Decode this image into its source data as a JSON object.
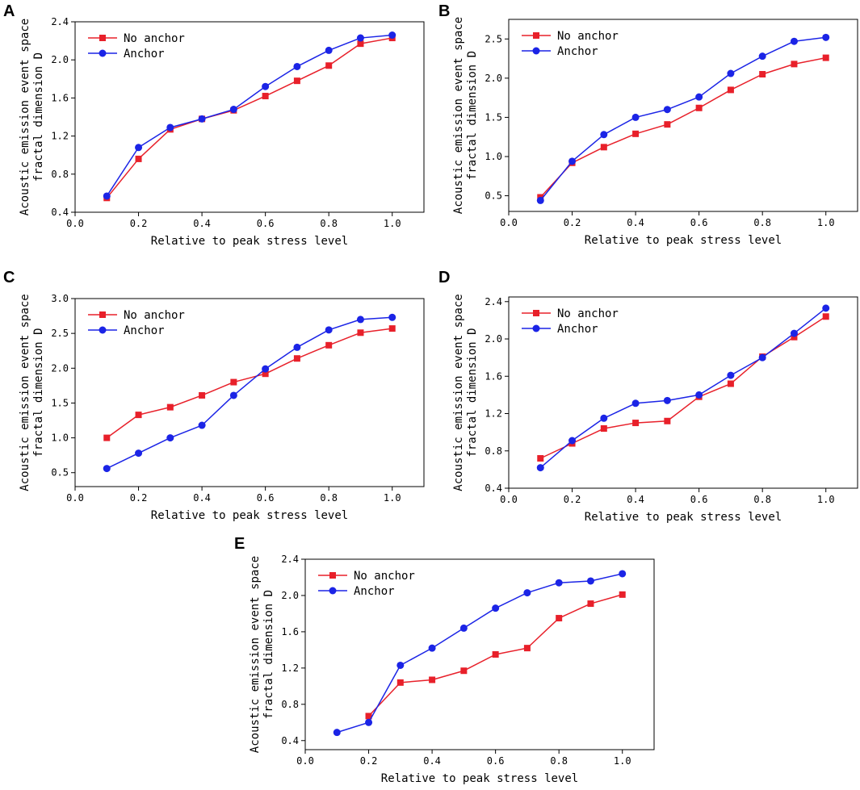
{
  "chart_data": [
    {
      "panel": "A",
      "type": "line",
      "xlabel": "Relative to peak stress level",
      "ylabel": [
        "Acoustic emission event space",
        "fractal dimension D"
      ],
      "xlim": [
        0.0,
        1.1
      ],
      "ylim": [
        0.4,
        2.4
      ],
      "xticks": [
        0.0,
        0.2,
        0.4,
        0.6,
        0.8,
        1.0
      ],
      "xtick_labels": [
        "0.0",
        "0.2",
        "0.4",
        "0.6",
        "0.8",
        "1.0"
      ],
      "yticks": [
        0.4,
        0.8,
        1.2,
        1.6,
        2.0,
        2.4
      ],
      "ytick_labels": [
        "0.4",
        "0.8",
        "1.2",
        "1.6",
        "2.0",
        "2.4"
      ],
      "legend_position": "top-left",
      "x": [
        0.1,
        0.2,
        0.3,
        0.4,
        0.5,
        0.6,
        0.7,
        0.8,
        0.9,
        1.0
      ],
      "series": [
        {
          "name": "No anchor",
          "color": "#e8202a",
          "marker": "square",
          "values": [
            0.55,
            0.96,
            1.27,
            1.38,
            1.47,
            1.62,
            1.78,
            1.94,
            2.17,
            2.23
          ]
        },
        {
          "name": "Anchor",
          "color": "#1b24e6",
          "marker": "circle",
          "values": [
            0.57,
            1.08,
            1.29,
            1.38,
            1.48,
            1.72,
            1.93,
            2.1,
            2.23,
            2.26
          ]
        }
      ]
    },
    {
      "panel": "B",
      "type": "line",
      "xlabel": "Relative to peak stress level",
      "ylabel": [
        "Acoustic emission event space",
        "fractal dimension D"
      ],
      "xlim": [
        0.0,
        1.1
      ],
      "ylim": [
        0.3,
        2.75
      ],
      "xticks": [
        0.0,
        0.2,
        0.4,
        0.6,
        0.8,
        1.0
      ],
      "xtick_labels": [
        "0.0",
        "0.2",
        "0.4",
        "0.6",
        "0.8",
        "1.0"
      ],
      "yticks": [
        0.5,
        1.0,
        1.5,
        2.0,
        2.5
      ],
      "ytick_labels": [
        "0.5",
        "1.0",
        "1.5",
        "2.0",
        "2.5"
      ],
      "legend_position": "top-left",
      "x": [
        0.1,
        0.2,
        0.3,
        0.4,
        0.5,
        0.6,
        0.7,
        0.8,
        0.9,
        1.0
      ],
      "series": [
        {
          "name": "No anchor",
          "color": "#e8202a",
          "marker": "square",
          "values": [
            0.48,
            0.92,
            1.12,
            1.29,
            1.41,
            1.62,
            1.85,
            2.05,
            2.18,
            2.26
          ]
        },
        {
          "name": "Anchor",
          "color": "#1b24e6",
          "marker": "circle",
          "values": [
            0.44,
            0.94,
            1.28,
            1.5,
            1.6,
            1.76,
            2.06,
            2.28,
            2.47,
            2.52
          ]
        }
      ]
    },
    {
      "panel": "C",
      "type": "line",
      "xlabel": "Relative to peak stress level",
      "ylabel": [
        "Acoustic emission event space",
        "fractal dimension D"
      ],
      "xlim": [
        0.0,
        1.1
      ],
      "ylim": [
        0.3,
        3.0
      ],
      "xticks": [
        0.0,
        0.2,
        0.4,
        0.6,
        0.8,
        1.0
      ],
      "xtick_labels": [
        "0.0",
        "0.2",
        "0.4",
        "0.6",
        "0.8",
        "1.0"
      ],
      "yticks": [
        0.5,
        1.0,
        1.5,
        2.0,
        2.5,
        3.0
      ],
      "ytick_labels": [
        "0.5",
        "1.0",
        "1.5",
        "2.0",
        "2.5",
        "3.0"
      ],
      "legend_position": "top-left",
      "x": [
        0.1,
        0.2,
        0.3,
        0.4,
        0.5,
        0.6,
        0.7,
        0.8,
        0.9,
        1.0
      ],
      "series": [
        {
          "name": "No anchor",
          "color": "#e8202a",
          "marker": "square",
          "values": [
            1.0,
            1.33,
            1.44,
            1.61,
            1.8,
            1.92,
            2.14,
            2.33,
            2.51,
            2.57
          ]
        },
        {
          "name": "Anchor",
          "color": "#1b24e6",
          "marker": "circle",
          "values": [
            0.56,
            0.78,
            1.0,
            1.18,
            1.61,
            1.99,
            2.3,
            2.55,
            2.7,
            2.73
          ]
        }
      ]
    },
    {
      "panel": "D",
      "type": "line",
      "xlabel": "Relative to peak stress level",
      "ylabel": [
        "Acoustic emission event space",
        "fractal dimension D"
      ],
      "xlim": [
        0.0,
        1.1
      ],
      "ylim": [
        0.4,
        2.45
      ],
      "xticks": [
        0.0,
        0.2,
        0.4,
        0.6,
        0.8,
        1.0
      ],
      "xtick_labels": [
        "0.0",
        "0.2",
        "0.4",
        "0.6",
        "0.8",
        "1.0"
      ],
      "yticks": [
        0.4,
        0.8,
        1.2,
        1.6,
        2.0,
        2.4
      ],
      "ytick_labels": [
        "0.4",
        "0.8",
        "1.2",
        "1.6",
        "2.0",
        "2.4"
      ],
      "legend_position": "top-left",
      "x": [
        0.1,
        0.2,
        0.3,
        0.4,
        0.5,
        0.6,
        0.7,
        0.8,
        0.9,
        1.0
      ],
      "series": [
        {
          "name": "No anchor",
          "color": "#e8202a",
          "marker": "square",
          "values": [
            0.72,
            0.88,
            1.04,
            1.1,
            1.12,
            1.38,
            1.52,
            1.81,
            2.02,
            2.24
          ]
        },
        {
          "name": "Anchor",
          "color": "#1b24e6",
          "marker": "circle",
          "values": [
            0.62,
            0.91,
            1.15,
            1.31,
            1.34,
            1.4,
            1.61,
            1.8,
            2.06,
            2.33
          ]
        }
      ]
    },
    {
      "panel": "E",
      "type": "line",
      "xlabel": "Relative to peak stress level",
      "ylabel": [
        "Acoustic emission event space",
        "fractal dimension D"
      ],
      "xlim": [
        0.0,
        1.1
      ],
      "ylim": [
        0.3,
        2.4
      ],
      "xticks": [
        0.0,
        0.2,
        0.4,
        0.6,
        0.8,
        1.0
      ],
      "xtick_labels": [
        "0.0",
        "0.2",
        "0.4",
        "0.6",
        "0.8",
        "1.0"
      ],
      "yticks": [
        0.4,
        0.8,
        1.2,
        1.6,
        2.0,
        2.4
      ],
      "ytick_labels": [
        "0.4",
        "0.8",
        "1.2",
        "1.6",
        "2.0",
        "2.4"
      ],
      "legend_position": "top-left",
      "x": [
        0.1,
        0.2,
        0.3,
        0.4,
        0.5,
        0.6,
        0.7,
        0.8,
        0.9,
        1.0
      ],
      "series": [
        {
          "name": "No anchor",
          "color": "#e8202a",
          "marker": "square",
          "values": [
            null,
            0.67,
            1.04,
            1.07,
            1.17,
            1.35,
            1.42,
            1.75,
            1.91,
            2.01
          ]
        },
        {
          "name": "Anchor",
          "color": "#1b24e6",
          "marker": "circle",
          "values": [
            0.49,
            0.6,
            1.23,
            1.42,
            1.64,
            1.86,
            2.03,
            2.14,
            2.16,
            2.24
          ]
        }
      ]
    }
  ]
}
